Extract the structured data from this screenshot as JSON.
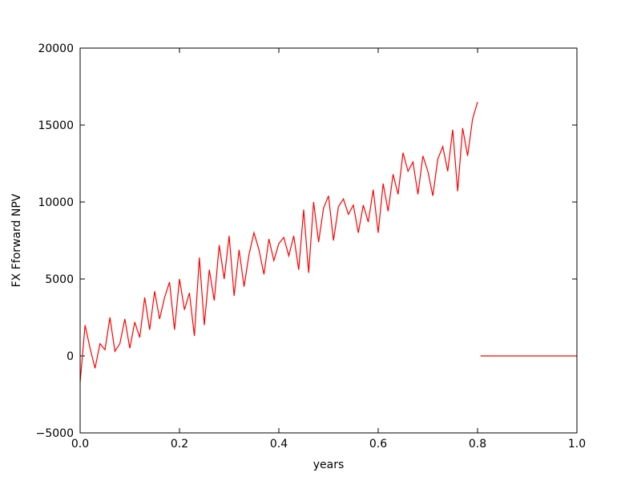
{
  "chart_data": {
    "type": "line",
    "xlabel": "years",
    "ylabel": "FX Fforward NPV",
    "x": [
      0.0,
      0.01,
      0.02,
      0.03,
      0.04,
      0.05,
      0.06,
      0.07,
      0.08,
      0.09,
      0.1,
      0.11,
      0.12,
      0.13,
      0.14,
      0.15,
      0.16,
      0.17,
      0.18,
      0.19,
      0.2,
      0.21,
      0.22,
      0.23,
      0.24,
      0.25,
      0.26,
      0.27,
      0.28,
      0.29,
      0.3,
      0.31,
      0.32,
      0.33,
      0.34,
      0.35,
      0.36,
      0.37,
      0.38,
      0.39,
      0.4,
      0.41,
      0.42,
      0.43,
      0.44,
      0.45,
      0.46,
      0.47,
      0.48,
      0.49,
      0.5,
      0.51,
      0.52,
      0.53,
      0.54,
      0.55,
      0.56,
      0.57,
      0.58,
      0.59,
      0.6,
      0.61,
      0.62,
      0.63,
      0.64,
      0.65,
      0.66,
      0.67,
      0.68,
      0.69,
      0.7,
      0.71,
      0.72,
      0.73,
      0.74,
      0.75,
      0.76,
      0.77,
      0.78,
      0.79,
      0.8,
      0.803,
      0.806,
      1.0
    ],
    "series": [
      {
        "name": "NPV",
        "color": "#ff0000",
        "values": [
          -1700,
          2000,
          500,
          -800,
          800,
          400,
          2500,
          300,
          800,
          2400,
          500,
          2200,
          1200,
          3800,
          1700,
          4200,
          2400,
          3800,
          4800,
          1700,
          5000,
          3000,
          4100,
          1300,
          6400,
          2000,
          5600,
          3600,
          7200,
          5000,
          7800,
          3900,
          6900,
          4500,
          6600,
          8000,
          6900,
          5300,
          7600,
          6200,
          7300,
          7700,
          6500,
          7800,
          5600,
          9500,
          5400,
          10000,
          7400,
          9600,
          10400,
          7500,
          9700,
          10200,
          9200,
          9800,
          8000,
          9800,
          8700,
          10800,
          8000,
          11200,
          9400,
          11800,
          10500,
          13200,
          12000,
          12600,
          10500,
          13000,
          12000,
          10400,
          12800,
          13600,
          12000,
          14700,
          10700,
          14800,
          13000,
          15400,
          16500,
          null,
          0,
          0
        ]
      }
    ],
    "xlim": [
      0,
      1
    ],
    "ylim": [
      -5000,
      20000
    ],
    "xticks": [
      {
        "value": 0,
        "label": "0.0"
      },
      0.2,
      0.4,
      0.6,
      0.8,
      {
        "value": 1,
        "label": "1.0"
      }
    ],
    "yticks": [
      {
        "value": -5000,
        "label": "−5000"
      },
      0,
      5000,
      10000,
      15000,
      20000
    ],
    "grid": false
  }
}
